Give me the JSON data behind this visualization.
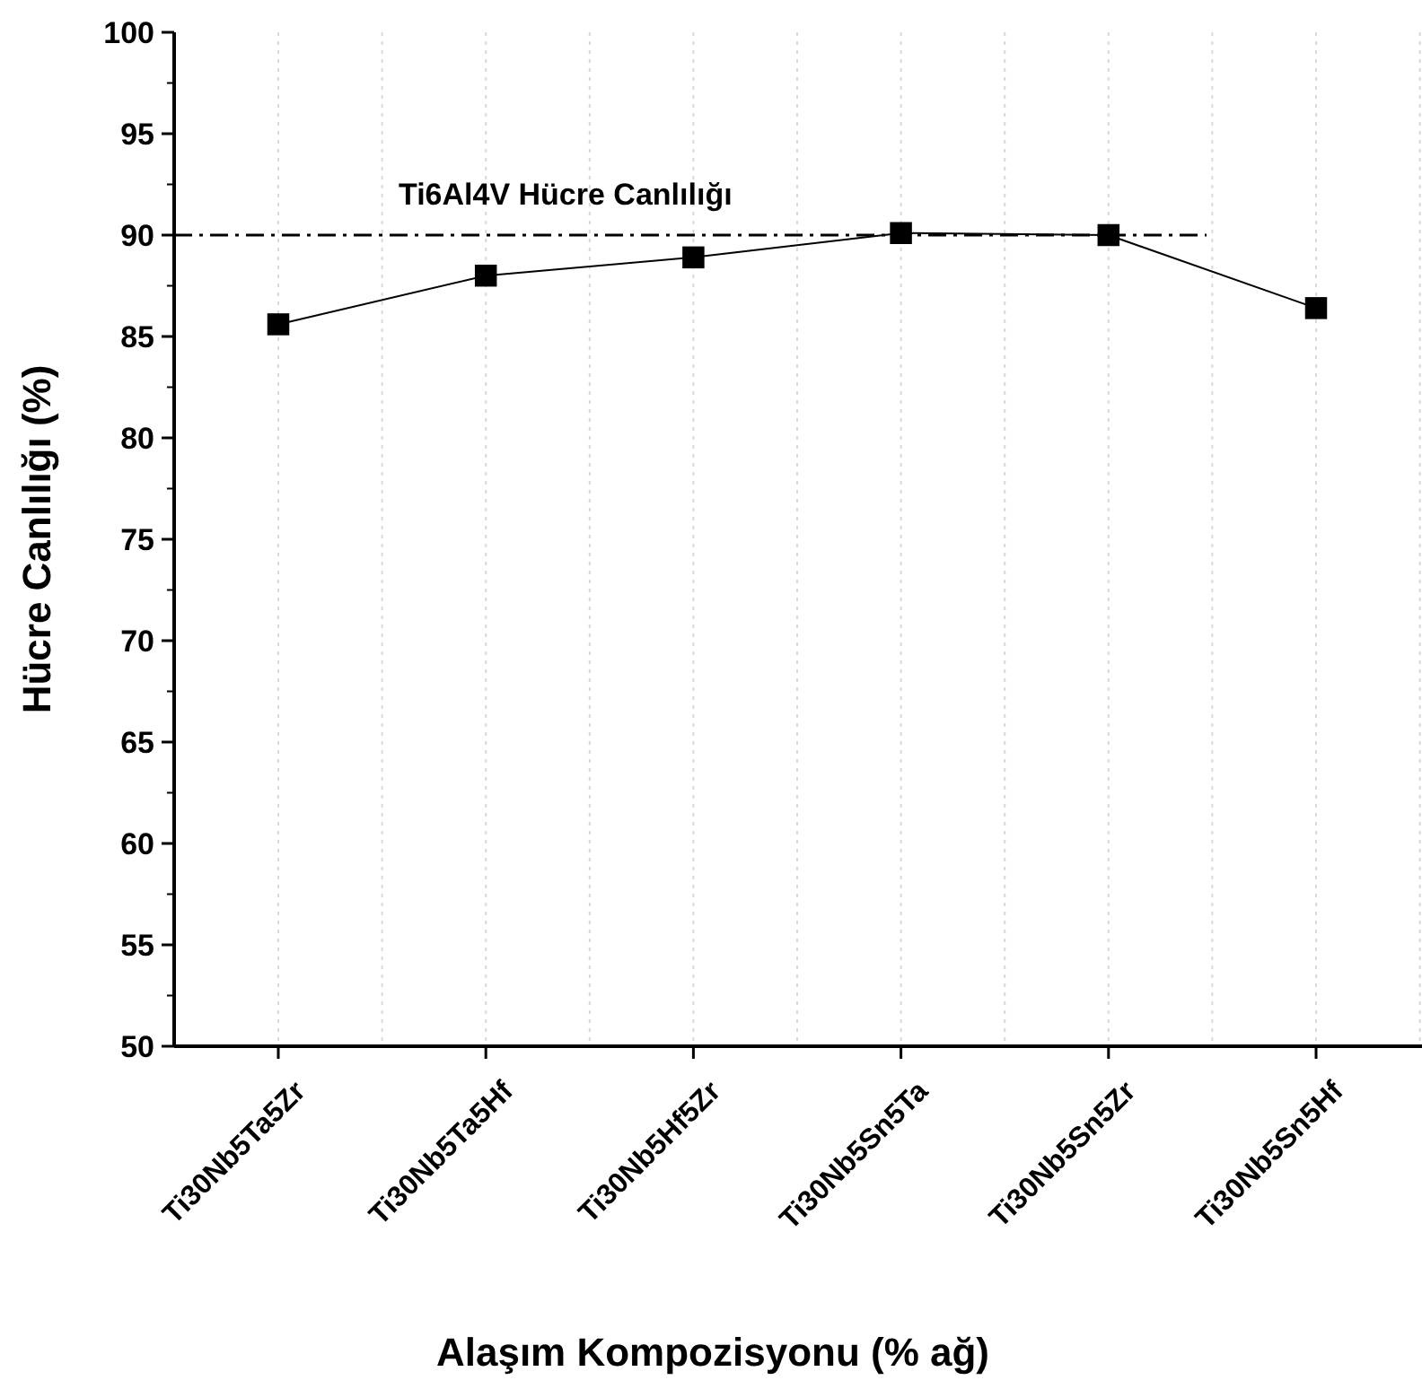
{
  "chart_data": {
    "type": "line",
    "xlabel": "Alaşım Kompozisyonu (% ağ)",
    "ylabel": "Hücre Canlılığı (%)",
    "categories": [
      "Ti30Nb5Ta5Zr",
      "Ti30Nb5Ta5Hf",
      "Ti30Nb5Hf5Zr",
      "Ti30Nb5Sn5Ta",
      "Ti30Nb5Sn5Zr",
      "Ti30Nb5Sn5Hf"
    ],
    "series": [
      {
        "color": "#000000",
        "values": [
          85.6,
          88.0,
          88.9,
          90.1,
          90.0,
          86.4
        ]
      }
    ],
    "ylim": [
      50,
      100
    ],
    "yticks": [
      50,
      55,
      60,
      65,
      70,
      75,
      80,
      85,
      90,
      95,
      100
    ],
    "ref_lines": [
      {
        "axis": "y",
        "value": 90,
        "label": "Ti6Al4V Hücre Canlılığı",
        "color": "#000000",
        "line_style": "dashdot"
      }
    ],
    "grid": "x",
    "marker": "square",
    "line_style": "solid"
  }
}
